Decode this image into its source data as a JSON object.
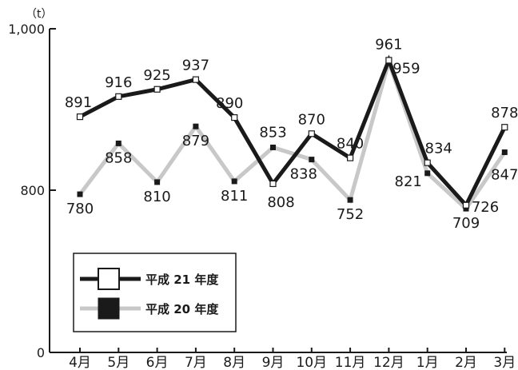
{
  "chart_data": {
    "type": "line",
    "unit_label": "（t）",
    "categories": [
      "4月",
      "5月",
      "6月",
      "7月",
      "8月",
      "9月",
      "10月",
      "11月",
      "12月",
      "1月",
      "2月",
      "3月"
    ],
    "y_ticks": [
      "1,000",
      "800",
      "0"
    ],
    "ylim": [
      0,
      1000
    ],
    "axis_break": "0–800 compressed",
    "grid": false,
    "legend_position": "bottom-left",
    "series": [
      {
        "name": "平成 21 年度",
        "color": "#1a1a1a",
        "marker": "hollow-square",
        "values": [
          891,
          916,
          925,
          937,
          890,
          808,
          870,
          840,
          961,
          834,
          726,
          878
        ],
        "labels": [
          "891",
          "916",
          "925",
          "937",
          "890",
          "808",
          "870",
          "840",
          "961",
          "834",
          "726",
          "878"
        ]
      },
      {
        "name": "平成 20 年度",
        "color": "#c8c8c8",
        "marker": "filled-square",
        "values": [
          780,
          858,
          810,
          879,
          811,
          853,
          838,
          752,
          959,
          821,
          709,
          847
        ],
        "labels": [
          "780",
          "858",
          "810",
          "879",
          "811",
          "853",
          "838",
          "752",
          "959",
          "821",
          "709",
          "847"
        ]
      }
    ]
  }
}
